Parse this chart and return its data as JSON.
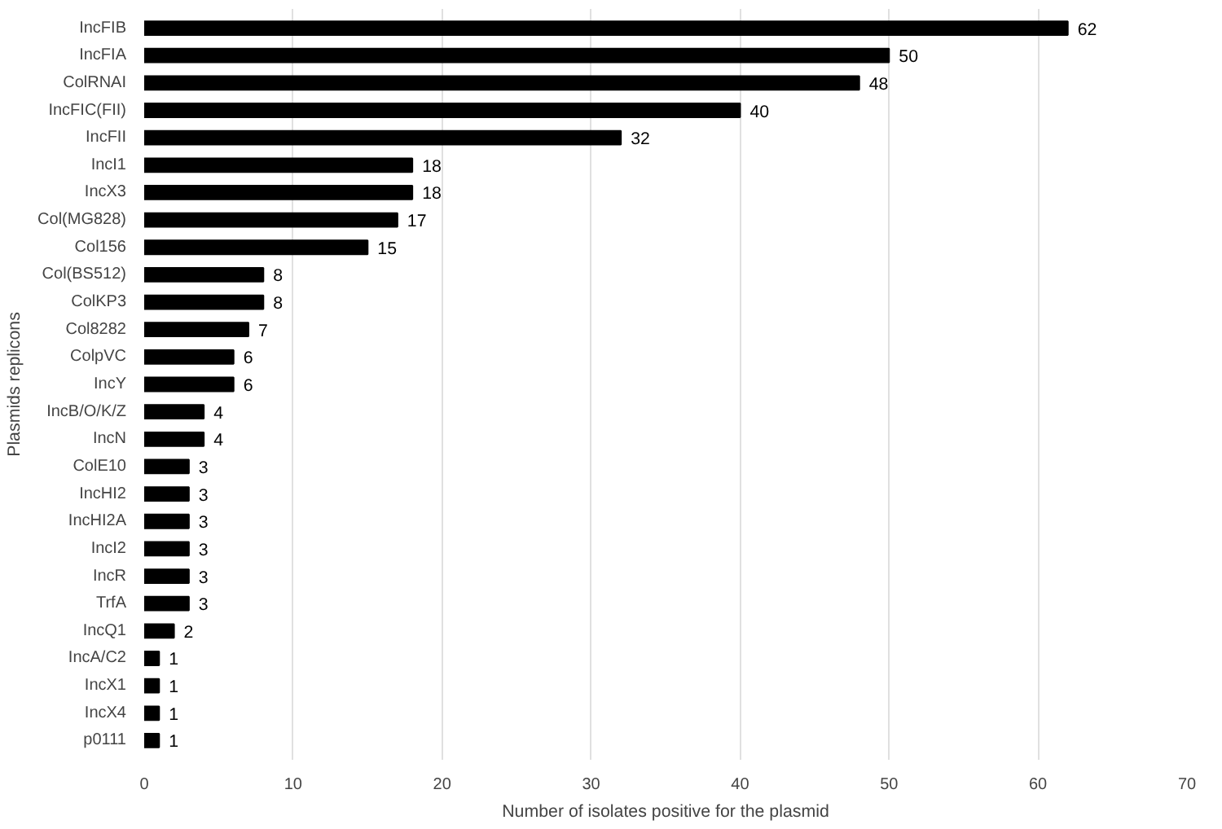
{
  "chart_data": {
    "type": "bar",
    "orientation": "horizontal",
    "xlabel": "Number of isolates positive for the plasmid",
    "ylabel": "Plasmids replicons",
    "categories": [
      "IncFIB",
      "IncFIA",
      "ColRNAI",
      "IncFIC(FII)",
      "IncFII",
      "IncI1",
      "IncX3",
      "Col(MG828)",
      "Col156",
      "Col(BS512)",
      "ColKP3",
      "Col8282",
      "ColpVC",
      "IncY",
      "IncB/O/K/Z",
      "IncN",
      "ColE10",
      "IncHI2",
      "IncHI2A",
      "IncI2",
      "IncR",
      "TrfA",
      "IncQ1",
      "IncA/C2",
      "IncX1",
      "IncX4",
      "p0111"
    ],
    "values": [
      62,
      50,
      48,
      40,
      32,
      18,
      18,
      17,
      15,
      8,
      8,
      7,
      6,
      6,
      4,
      4,
      3,
      3,
      3,
      3,
      3,
      3,
      2,
      1,
      1,
      1,
      1
    ],
    "color": "#000000",
    "data_labels": true,
    "xlim": [
      0,
      70
    ],
    "xticks": [
      0,
      10,
      20,
      30,
      40,
      50,
      60,
      70
    ],
    "grid": "x"
  }
}
